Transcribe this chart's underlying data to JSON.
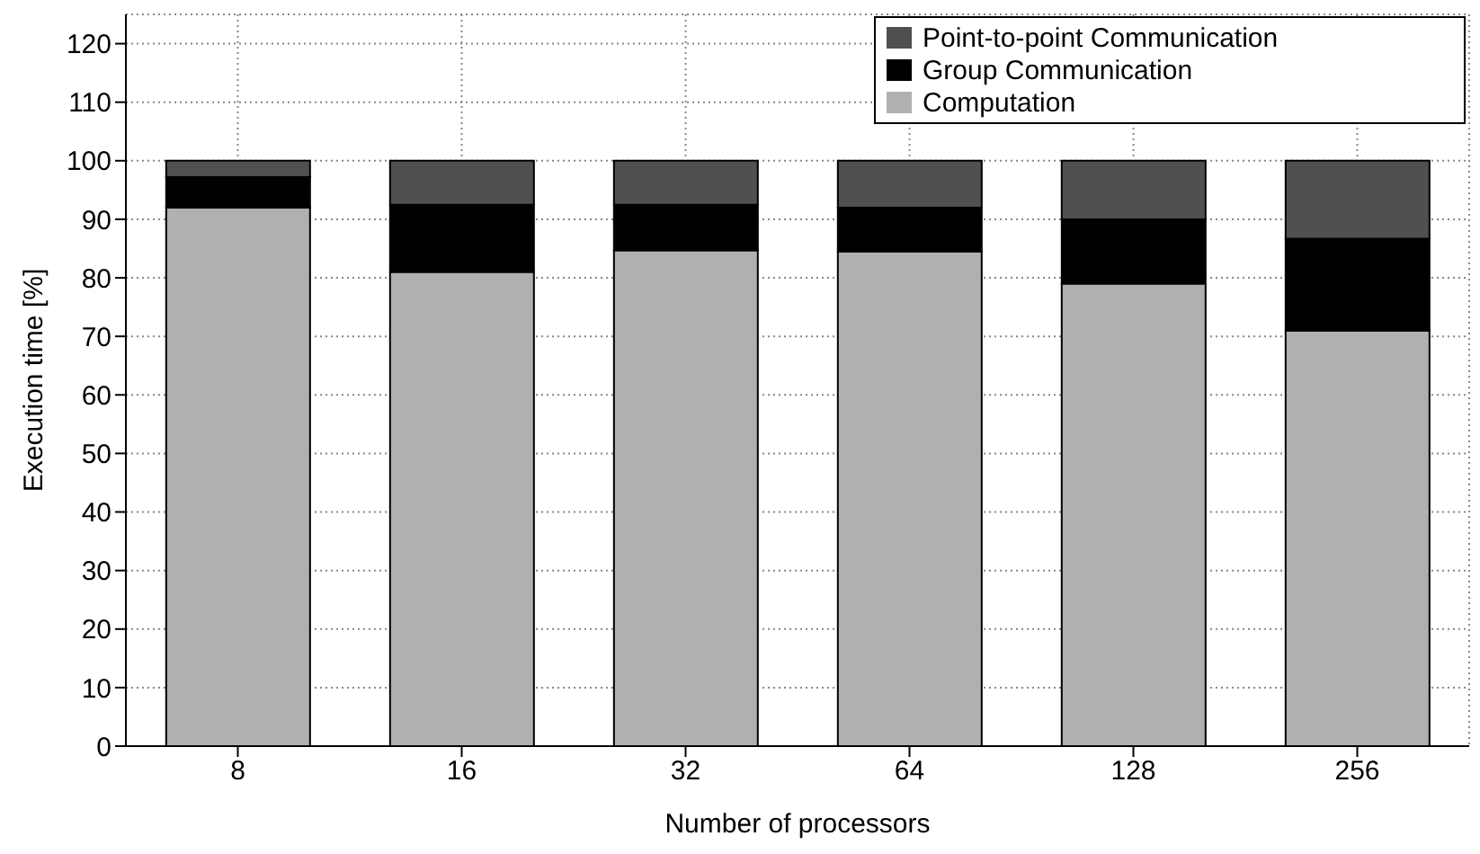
{
  "chart_data": {
    "type": "bar",
    "stacked": true,
    "xlabel": "Number of processors",
    "ylabel": "Execution time [%]",
    "categories": [
      "8",
      "16",
      "32",
      "64",
      "128",
      "256"
    ],
    "series": [
      {
        "name": "Computation",
        "color": "#b0b0b0",
        "values": [
          92,
          81,
          84.7,
          84.5,
          79,
          71
        ]
      },
      {
        "name": "Group Communication",
        "color": "#000000",
        "values": [
          5.2,
          11.5,
          7.8,
          7.5,
          11,
          15.7
        ]
      },
      {
        "name": "Point-to-point Communication",
        "color": "#505050",
        "values": [
          2.8,
          7.5,
          7.5,
          8,
          10,
          13.3
        ]
      }
    ],
    "ylim": [
      0,
      125
    ],
    "yticks": [
      0,
      10,
      20,
      30,
      40,
      50,
      60,
      70,
      80,
      90,
      100,
      110,
      120
    ],
    "grid": true,
    "legend": "top right"
  }
}
